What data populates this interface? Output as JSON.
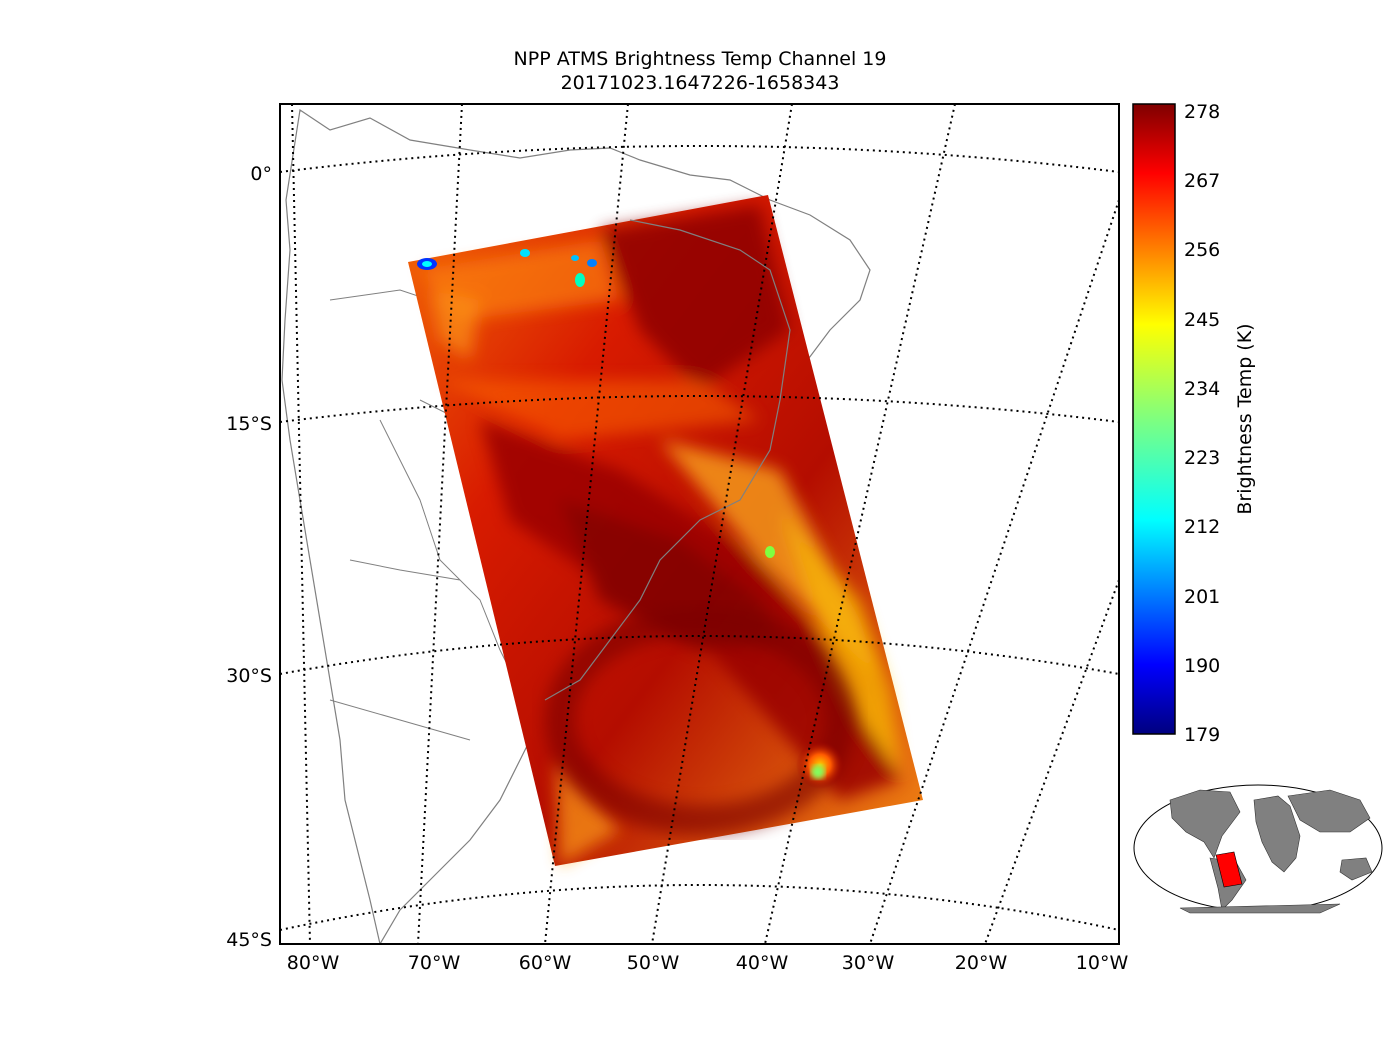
{
  "title": {
    "line1": "NPP ATMS Brightness Temp Channel 19",
    "line2": "20171023.1647226-1658343"
  },
  "map": {
    "lat_labels": [
      "0°",
      "15°S",
      "30°S",
      "45°S"
    ],
    "lon_labels": [
      "80°W",
      "70°W",
      "60°W",
      "50°W",
      "40°W",
      "30°W",
      "20°W",
      "10°W"
    ],
    "gridline_style": "dotted black",
    "coastline_color": "#808080",
    "land_fill": "none"
  },
  "colorbar": {
    "label": "Brightness Temp (K)",
    "ticks": [
      "278",
      "267",
      "256",
      "245",
      "234",
      "223",
      "212",
      "201",
      "190",
      "179"
    ],
    "range_K": [
      179,
      278
    ],
    "colormap": "jet",
    "colors": [
      "#00007f",
      "#0000ff",
      "#007fff",
      "#00ffff",
      "#7fff7f",
      "#ffff00",
      "#ff7f00",
      "#ff0000",
      "#7f0000"
    ]
  },
  "inset": {
    "land_color": "#808080",
    "swath_color": "#ff0000"
  }
}
